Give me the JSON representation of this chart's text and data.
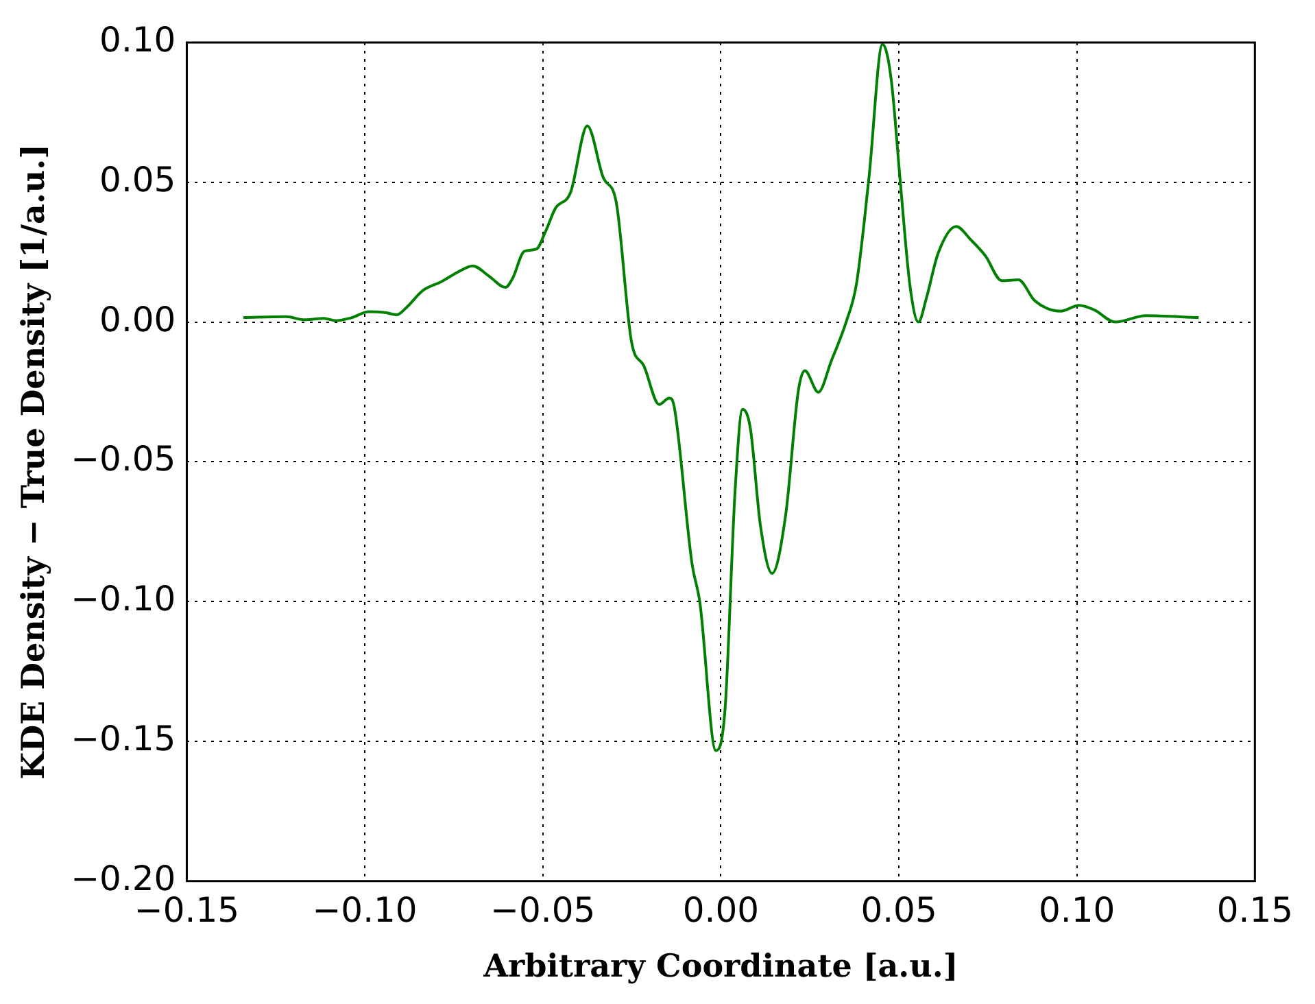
{
  "chart_data": {
    "type": "line",
    "xlabel": "Arbitrary Coordinate [a.u.]",
    "ylabel": "KDE Density − True Density [1/a.u.]",
    "series": [
      {
        "color": "#008000",
        "x": [
          -0.1341,
          -0.1221,
          -0.1168,
          -0.1115,
          -0.1082,
          -0.1036,
          -0.0989,
          -0.0943,
          -0.091,
          -0.0883,
          -0.0837,
          -0.0784,
          -0.0737,
          -0.0697,
          -0.0651,
          -0.0605,
          -0.0585,
          -0.0552,
          -0.0518,
          -0.0492,
          -0.0465,
          -0.0422,
          -0.0375,
          -0.033,
          -0.0294,
          -0.0251,
          -0.0216,
          -0.0173,
          -0.0145,
          -0.0131,
          -0.0081,
          -0.0059,
          -0.0014,
          0.0012,
          0.004,
          0.0061,
          0.0083,
          0.0111,
          0.0144,
          0.0182,
          0.0218,
          0.0236,
          0.0274,
          0.031,
          0.0353,
          0.0381,
          0.0416,
          0.0454,
          0.0478,
          0.0504,
          0.0531,
          0.0555,
          0.0577,
          0.061,
          0.0661,
          0.0703,
          0.0743,
          0.0789,
          0.0836,
          0.0882,
          0.0955,
          0.1006,
          0.1048,
          0.1108,
          0.1194,
          0.1342
        ],
        "values": [
          0.0016,
          0.0019,
          0.0008,
          0.0013,
          0.0005,
          0.0016,
          0.0037,
          0.0034,
          0.0026,
          0.0052,
          0.0113,
          0.0145,
          0.018,
          0.0201,
          0.0164,
          0.0124,
          0.0156,
          0.0253,
          0.0261,
          0.0325,
          0.0406,
          0.0464,
          0.0702,
          0.0516,
          0.043,
          -0.007,
          -0.0157,
          -0.0295,
          -0.0272,
          -0.0303,
          -0.0864,
          -0.1002,
          -0.1533,
          -0.1382,
          -0.0604,
          -0.0312,
          -0.0381,
          -0.0726,
          -0.0899,
          -0.0691,
          -0.0243,
          -0.0174,
          -0.0251,
          -0.014,
          0.0004,
          0.0137,
          0.0516,
          0.0994,
          0.0873,
          0.0502,
          0.0132,
          0.0,
          0.0084,
          0.0245,
          0.0342,
          0.0293,
          0.0237,
          0.0148,
          0.0151,
          0.0076,
          0.0039,
          0.006,
          0.0044,
          0.0,
          0.0023,
          0.0016
        ]
      }
    ],
    "xlim": [
      -0.15,
      0.15
    ],
    "ylim": [
      -0.2,
      0.1
    ],
    "xticks": [
      {
        "value": -0.15,
        "label": "−0.15"
      },
      {
        "value": -0.1,
        "label": "−0.10"
      },
      {
        "value": -0.05,
        "label": "−0.05"
      },
      {
        "value": 0,
        "label": "0.00"
      },
      {
        "value": 0.05,
        "label": "0.05"
      },
      {
        "value": 0.1,
        "label": "0.10"
      },
      {
        "value": 0.15,
        "label": "0.15"
      }
    ],
    "yticks": [
      {
        "value": -0.2,
        "label": "−0.20"
      },
      {
        "value": -0.15,
        "label": "−0.15"
      },
      {
        "value": -0.1,
        "label": "−0.10"
      },
      {
        "value": -0.05,
        "label": "−0.05"
      },
      {
        "value": 0,
        "label": "0.00"
      },
      {
        "value": 0.05,
        "label": "0.05"
      },
      {
        "value": 0.1,
        "label": "0.10"
      }
    ],
    "grid": true,
    "legend": false,
    "marker": "none",
    "line_style": "solid"
  }
}
